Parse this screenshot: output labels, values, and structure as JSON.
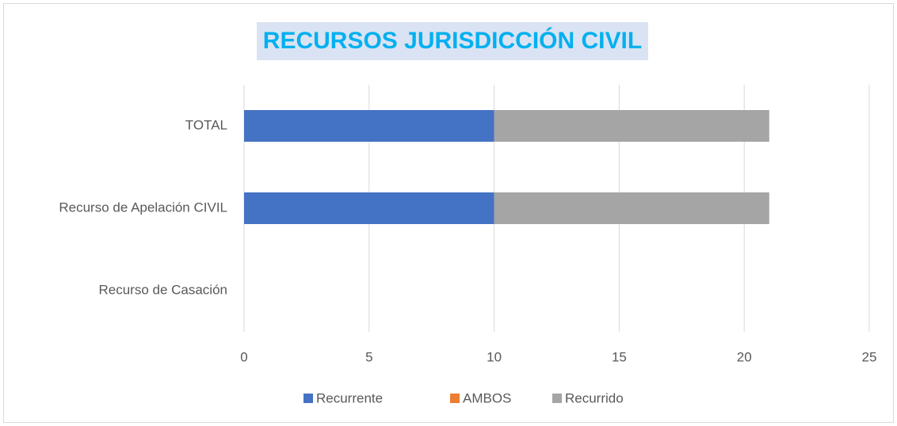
{
  "chart_data": {
    "type": "stacked-barh",
    "title": "RECURSOS JURISDICCIÓN CIVIL",
    "categories": [
      "TOTAL",
      "Recurso de Apelación CIVIL",
      "Recurso de Casación"
    ],
    "series": [
      {
        "name": "Recurrente",
        "color": "#4472c4",
        "values": [
          10,
          10,
          0
        ]
      },
      {
        "name": "AMBOS",
        "color": "#ed7d31",
        "values": [
          0,
          0,
          0
        ]
      },
      {
        "name": "Recurrido",
        "color": "#a5a5a5",
        "values": [
          11,
          11,
          0
        ]
      }
    ],
    "xlim": [
      0,
      25
    ],
    "xticks": [
      0,
      5,
      10,
      15,
      20,
      25
    ],
    "grid": true,
    "legend": "bottom"
  }
}
